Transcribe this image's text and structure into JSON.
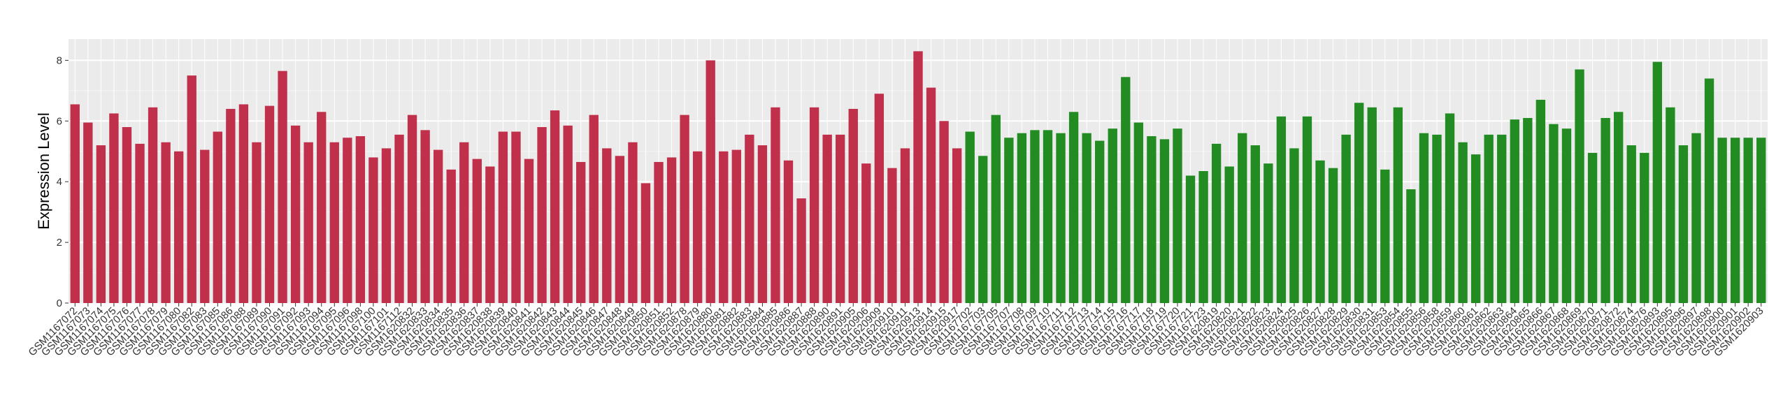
{
  "chart_data": {
    "type": "bar",
    "ylabel": "Expression Level",
    "xlabel": "",
    "ylim": [
      0,
      8.7
    ],
    "yticks": [
      0,
      2,
      4,
      6,
      8
    ],
    "grid": true,
    "colors": {
      "group1": "#c0304a",
      "group2": "#228b22",
      "panel": "#ebebeb",
      "grid": "#ffffff"
    },
    "categories": [
      "GSM1167072",
      "GSM1167073",
      "GSM1167074",
      "GSM1167075",
      "GSM1167076",
      "GSM1167077",
      "GSM1167078",
      "GSM1167079",
      "GSM1167080",
      "GSM1167082",
      "GSM1167083",
      "GSM1167085",
      "GSM1167086",
      "GSM1167088",
      "GSM1167089",
      "GSM1167090",
      "GSM1167091",
      "GSM1167092",
      "GSM1167093",
      "GSM1167094",
      "GSM1167095",
      "GSM1167096",
      "GSM1167098",
      "GSM1167100",
      "GSM1167101",
      "GSM1167112",
      "GSM1620832",
      "GSM1620833",
      "GSM1620834",
      "GSM1620835",
      "GSM1620836",
      "GSM1620837",
      "GSM1620838",
      "GSM1620839",
      "GSM1620840",
      "GSM1620841",
      "GSM1620842",
      "GSM1620843",
      "GSM1620844",
      "GSM1620845",
      "GSM1620846",
      "GSM1620847",
      "GSM1620848",
      "GSM1620849",
      "GSM1620850",
      "GSM1620851",
      "GSM1620852",
      "GSM1620878",
      "GSM1620879",
      "GSM1620880",
      "GSM1620881",
      "GSM1620882",
      "GSM1620883",
      "GSM1620884",
      "GSM1620885",
      "GSM1620886",
      "GSM1620887",
      "GSM1620888",
      "GSM1620890",
      "GSM1620891",
      "GSM1620905",
      "GSM1620906",
      "GSM1620909",
      "GSM1620910",
      "GSM1620911",
      "GSM1620913",
      "GSM1620914",
      "GSM1620915",
      "GSM1620917",
      "GSM1167702",
      "GSM1167703",
      "GSM1167705",
      "GSM1167707",
      "GSM1167708",
      "GSM1167709",
      "GSM1167710",
      "GSM1167711",
      "GSM1167712",
      "GSM1167713",
      "GSM1167714",
      "GSM1167715",
      "GSM1167716",
      "GSM1167717",
      "GSM1167718",
      "GSM1167719",
      "GSM1167720",
      "GSM1167721",
      "GSM1167723",
      "GSM1620819",
      "GSM1620820",
      "GSM1620821",
      "GSM1620822",
      "GSM1620823",
      "GSM1620824",
      "GSM1620825",
      "GSM1620826",
      "GSM1620827",
      "GSM1620828",
      "GSM1620829",
      "GSM1620830",
      "GSM1620831",
      "GSM1620853",
      "GSM1620854",
      "GSM1620855",
      "GSM1620856",
      "GSM1620858",
      "GSM1620859",
      "GSM1620860",
      "GSM1620861",
      "GSM1620862",
      "GSM1620863",
      "GSM1620864",
      "GSM1620865",
      "GSM1620866",
      "GSM1620867",
      "GSM1620868",
      "GSM1620869",
      "GSM1620870",
      "GSM1620871",
      "GSM1620872",
      "GSM1620874",
      "GSM1620876",
      "GSM1620893",
      "GSM1620895",
      "GSM1620896",
      "GSM1620897",
      "GSM1620898",
      "GSM1620900",
      "GSM1620901",
      "GSM1620902",
      "GSM1620903"
    ],
    "values": [
      6.55,
      5.95,
      5.2,
      6.25,
      5.8,
      5.25,
      6.45,
      5.3,
      5.0,
      7.5,
      5.05,
      5.65,
      6.4,
      6.55,
      5.3,
      6.5,
      7.65,
      5.85,
      5.3,
      6.3,
      5.3,
      5.45,
      5.5,
      4.8,
      5.1,
      5.55,
      6.2,
      5.7,
      5.05,
      4.4,
      5.3,
      4.75,
      4.5,
      5.65,
      5.65,
      4.75,
      5.8,
      6.35,
      5.85,
      4.65,
      6.2,
      5.1,
      4.85,
      5.3,
      3.95,
      4.65,
      4.8,
      6.2,
      5.0,
      8.0,
      5.0,
      5.05,
      5.55,
      5.2,
      6.45,
      4.7,
      3.45,
      6.45,
      5.55,
      5.55,
      6.4,
      4.6,
      6.9,
      4.45,
      5.1,
      8.3,
      7.1,
      6.0,
      5.1,
      5.65,
      4.85,
      6.2,
      5.45,
      5.6,
      5.7,
      5.7,
      5.6,
      6.3,
      5.6,
      5.35,
      5.75,
      7.45,
      5.95,
      5.5,
      5.4,
      5.75,
      4.2,
      4.35,
      5.25,
      4.5,
      5.6,
      5.2,
      4.6,
      6.15,
      5.1,
      6.15,
      4.7,
      4.45,
      5.55,
      6.6,
      6.45,
      4.4,
      6.45,
      3.75,
      5.6,
      5.55,
      6.25,
      5.3,
      4.9,
      5.55,
      5.55,
      6.05,
      6.1,
      6.7,
      5.9,
      5.75,
      7.7,
      4.95,
      6.1,
      6.3,
      5.2,
      4.95,
      7.95,
      6.45,
      5.2,
      5.6,
      7.4,
      5.45,
      5.45,
      5.45,
      5.45
    ],
    "group1_count": 69
  }
}
